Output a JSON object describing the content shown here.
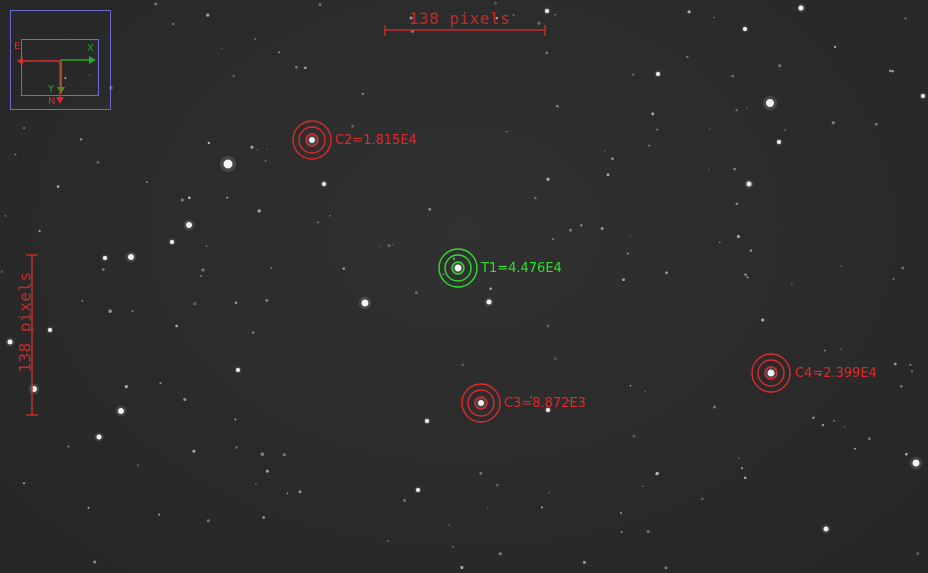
{
  "scale_bar": {
    "horizontal_label": "138 pixels",
    "vertical_label": "138 pixels",
    "color": "#c62b2b"
  },
  "orientation": {
    "x_label": "X",
    "y_label": "Y",
    "n_label": "N",
    "e_label": "E",
    "xy_color": "#22a822",
    "ne_color": "#d22b2b",
    "frame_color": "#6a6acc"
  },
  "apertures": [
    {
      "id": "T1",
      "label": "T1=4.476E4",
      "kind": "target",
      "color": "#2ee02e"
    },
    {
      "id": "C2",
      "label": "C2=1.815E4",
      "kind": "comparison",
      "color": "#e02a2a"
    },
    {
      "id": "C3",
      "label": "C3=8.872E3",
      "kind": "comparison",
      "color": "#e02a2a"
    },
    {
      "id": "C4",
      "label": "C4=2.399E4",
      "kind": "comparison",
      "color": "#e02a2a"
    }
  ]
}
